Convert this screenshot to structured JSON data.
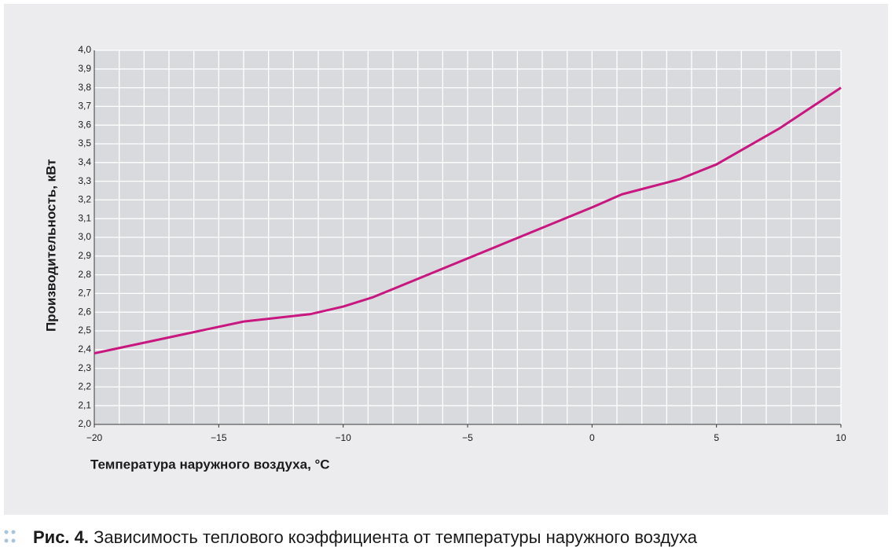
{
  "chart_data": {
    "type": "line",
    "x_label": "Температура наружного воздуха, °C",
    "y_label": "Производительность, кВт",
    "x": [
      -20,
      -14,
      -11.3,
      -10,
      -8.8,
      0,
      1.2,
      3.5,
      5,
      7.5,
      10
    ],
    "series": [
      {
        "name": "Производительность",
        "color": "#c8177f",
        "values": [
          2.38,
          2.55,
          2.59,
          2.63,
          2.68,
          3.16,
          3.23,
          3.31,
          3.39,
          3.58,
          3.8
        ]
      }
    ],
    "xlim": [
      -20,
      10
    ],
    "xticks": [
      {
        "value": -20,
        "label": "−20"
      },
      {
        "value": -15,
        "label": "−15"
      },
      {
        "value": -10,
        "label": "−10"
      },
      {
        "value": -5,
        "label": "−5"
      },
      0,
      5,
      10
    ],
    "x_grid_step": 1,
    "ylim": [
      2.0,
      4.0
    ],
    "yticks": [
      {
        "value": 2.0,
        "label": "2,0"
      },
      {
        "value": 2.1,
        "label": "2,1"
      },
      {
        "value": 2.2,
        "label": "2,2"
      },
      {
        "value": 2.3,
        "label": "2,3"
      },
      {
        "value": 2.4,
        "label": "2,4"
      },
      {
        "value": 2.5,
        "label": "2,5"
      },
      {
        "value": 2.6,
        "label": "2,6"
      },
      {
        "value": 2.7,
        "label": "2,7"
      },
      {
        "value": 2.8,
        "label": "2,8"
      },
      {
        "value": 2.9,
        "label": "2,9"
      },
      {
        "value": 3.0,
        "label": "3,0"
      },
      {
        "value": 3.1,
        "label": "3,1"
      },
      {
        "value": 3.2,
        "label": "3,2"
      },
      {
        "value": 3.3,
        "label": "3,3"
      },
      {
        "value": 3.4,
        "label": "3,4"
      },
      {
        "value": 3.5,
        "label": "3,5"
      },
      {
        "value": 3.6,
        "label": "3,6"
      },
      {
        "value": 3.7,
        "label": "3,7"
      },
      {
        "value": 3.8,
        "label": "3,8"
      },
      {
        "value": 3.9,
        "label": "3,9"
      },
      {
        "value": 4.0,
        "label": "4,0"
      }
    ],
    "grid": true
  },
  "caption": {
    "label": "Рис. 4.",
    "text": "Зависимость теплового коэффициента от температуры наружного воздуха"
  }
}
